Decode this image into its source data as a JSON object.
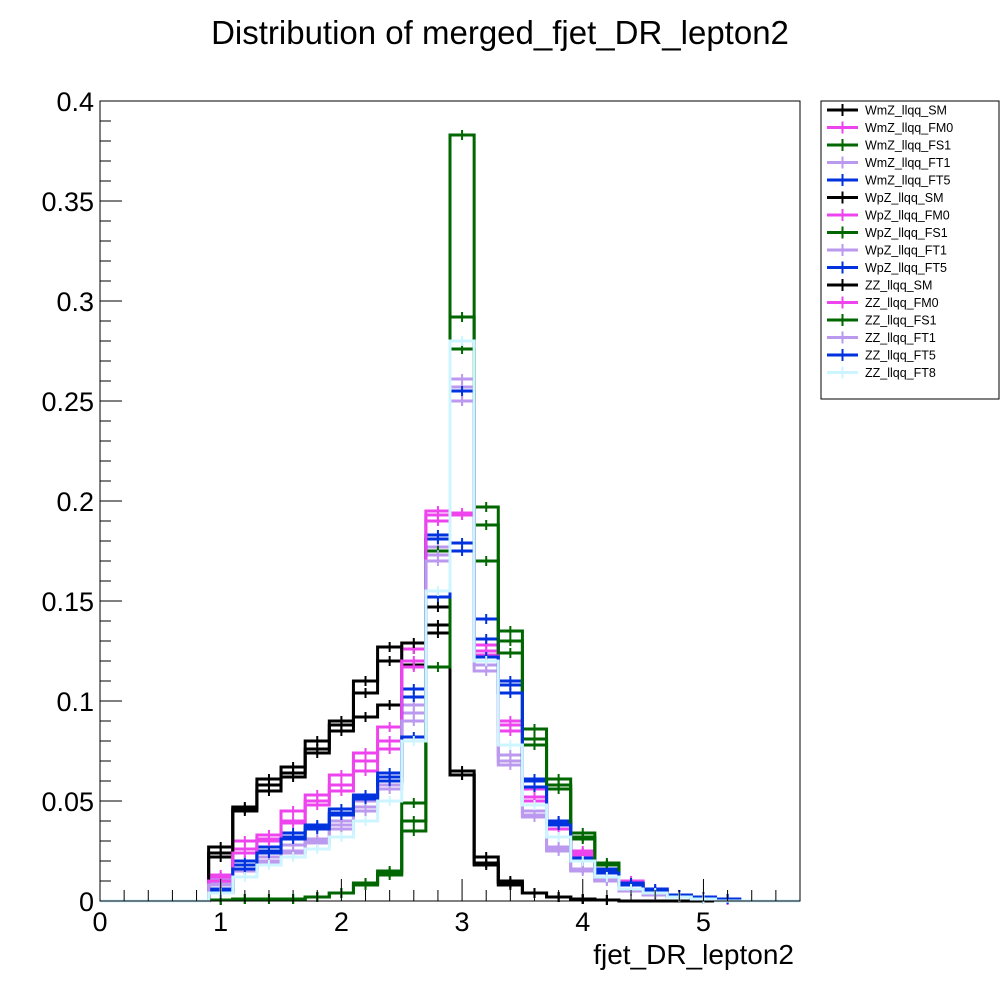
{
  "chart_data": {
    "type": "line",
    "title": "Distribution of merged_fjet_DR_lepton2",
    "xlabel": "fjet_DR_lepton2",
    "ylabel": "",
    "xlim": [
      0,
      5.8
    ],
    "ylim": [
      0,
      0.4
    ],
    "x_ticks": [
      "0",
      "1",
      "2",
      "3",
      "4",
      "5"
    ],
    "y_ticks": [
      "0",
      "0.05",
      "0.1",
      "0.15",
      "0.2",
      "0.25",
      "0.3",
      "0.35",
      "0.4"
    ],
    "bin_edges": [
      0.9,
      1.1,
      1.3,
      1.5,
      1.7,
      1.9,
      2.1,
      2.3,
      2.5,
      2.7,
      2.9,
      3.1,
      3.3,
      3.5,
      3.7,
      3.9,
      4.1,
      4.3,
      4.5,
      4.7,
      4.9,
      5.1,
      5.3,
      5.5
    ],
    "legend_position": "top-right",
    "grid": false,
    "series": [
      {
        "name": "WmZ_llqq_SM",
        "color": "#000000",
        "values": [
          0.027,
          0.047,
          0.055,
          0.062,
          0.074,
          0.085,
          0.092,
          0.098,
          0.118,
          0.138,
          0.063,
          0.018,
          0.008,
          0.004,
          0.002,
          0.001,
          0.0005,
          0,
          0,
          0,
          0,
          0,
          0
        ]
      },
      {
        "name": "WmZ_llqq_FM0",
        "color": "#ee44ee",
        "values": [
          0.013,
          0.03,
          0.033,
          0.039,
          0.048,
          0.055,
          0.065,
          0.076,
          0.117,
          0.195,
          0.193,
          0.128,
          0.09,
          0.056,
          0.04,
          0.025,
          0.016,
          0.01,
          0.006,
          0.003,
          0.001,
          0.0005,
          0
        ]
      },
      {
        "name": "WmZ_llqq_FS1",
        "color": "#006600",
        "values": [
          0.0005,
          0.001,
          0.001,
          0.001,
          0.002,
          0.004,
          0.009,
          0.015,
          0.049,
          0.181,
          0.383,
          0.197,
          0.135,
          0.086,
          0.061,
          0.034,
          0.019,
          0.009,
          0.004,
          0.002,
          0.001,
          0,
          0
        ]
      },
      {
        "name": "WmZ_llqq_FT1",
        "color": "#bb99ee",
        "values": [
          0.011,
          0.018,
          0.022,
          0.028,
          0.031,
          0.04,
          0.05,
          0.062,
          0.098,
          0.177,
          0.257,
          0.123,
          0.073,
          0.045,
          0.027,
          0.016,
          0.011,
          0.006,
          0.004,
          0.002,
          0.001,
          0,
          0
        ]
      },
      {
        "name": "WmZ_llqq_FT5",
        "color": "#0033dd",
        "values": [
          0.006,
          0.02,
          0.027,
          0.034,
          0.038,
          0.046,
          0.053,
          0.064,
          0.106,
          0.183,
          0.179,
          0.141,
          0.11,
          0.061,
          0.04,
          0.022,
          0.016,
          0.009,
          0.006,
          0.003,
          0.002,
          0.001,
          0
        ]
      },
      {
        "name": "WpZ_llqq_SM",
        "color": "#000000",
        "values": [
          0.022,
          0.045,
          0.061,
          0.067,
          0.08,
          0.09,
          0.11,
          0.127,
          0.126,
          0.134,
          0.063,
          0.022,
          0.01,
          0.004,
          0.002,
          0.001,
          0.0005,
          0,
          0,
          0,
          0,
          0,
          0
        ]
      },
      {
        "name": "WpZ_llqq_FM0",
        "color": "#ee44ee",
        "values": [
          0.012,
          0.026,
          0.031,
          0.045,
          0.053,
          0.063,
          0.074,
          0.087,
          0.126,
          0.193,
          0.194,
          0.123,
          0.088,
          0.052,
          0.038,
          0.024,
          0.015,
          0.008,
          0.005,
          0.003,
          0.001,
          0,
          0
        ]
      },
      {
        "name": "WpZ_llqq_FS1",
        "color": "#006600",
        "values": [
          0.0005,
          0.001,
          0.001,
          0.001,
          0.002,
          0.004,
          0.009,
          0.014,
          0.04,
          0.175,
          0.292,
          0.188,
          0.13,
          0.081,
          0.058,
          0.032,
          0.018,
          0.008,
          0.004,
          0.002,
          0.001,
          0,
          0
        ]
      },
      {
        "name": "WpZ_llqq_FT1",
        "color": "#bb99ee",
        "values": [
          0.009,
          0.016,
          0.02,
          0.025,
          0.03,
          0.038,
          0.047,
          0.058,
          0.094,
          0.173,
          0.261,
          0.118,
          0.07,
          0.043,
          0.026,
          0.016,
          0.01,
          0.006,
          0.003,
          0.002,
          0.001,
          0,
          0
        ]
      },
      {
        "name": "WpZ_llqq_FT5",
        "color": "#0033dd",
        "values": [
          0.005,
          0.018,
          0.025,
          0.032,
          0.037,
          0.044,
          0.052,
          0.062,
          0.102,
          0.181,
          0.175,
          0.131,
          0.108,
          0.06,
          0.039,
          0.021,
          0.015,
          0.009,
          0.005,
          0.003,
          0.001,
          0.001,
          0
        ]
      },
      {
        "name": "ZZ_llqq_SM",
        "color": "#000000",
        "values": [
          0.024,
          0.046,
          0.058,
          0.064,
          0.076,
          0.088,
          0.104,
          0.12,
          0.129,
          0.147,
          0.065,
          0.019,
          0.009,
          0.004,
          0.002,
          0.001,
          0.0005,
          0,
          0,
          0,
          0,
          0,
          0
        ]
      },
      {
        "name": "ZZ_llqq_FM0",
        "color": "#ee44ee",
        "values": [
          0.01,
          0.024,
          0.03,
          0.04,
          0.05,
          0.058,
          0.07,
          0.08,
          0.12,
          0.19,
          0.25,
          0.125,
          0.085,
          0.05,
          0.036,
          0.023,
          0.014,
          0.008,
          0.005,
          0.002,
          0.001,
          0,
          0
        ]
      },
      {
        "name": "ZZ_llqq_FS1",
        "color": "#006600",
        "values": [
          0.0005,
          0.001,
          0.001,
          0.001,
          0.002,
          0.004,
          0.008,
          0.013,
          0.035,
          0.117,
          0.276,
          0.17,
          0.124,
          0.078,
          0.056,
          0.031,
          0.018,
          0.008,
          0.004,
          0.002,
          0.001,
          0,
          0
        ]
      },
      {
        "name": "ZZ_llqq_FT1",
        "color": "#bb99ee",
        "values": [
          0.008,
          0.015,
          0.019,
          0.024,
          0.029,
          0.036,
          0.045,
          0.056,
          0.09,
          0.17,
          0.25,
          0.115,
          0.068,
          0.042,
          0.025,
          0.015,
          0.01,
          0.005,
          0.003,
          0.002,
          0.001,
          0,
          0
        ]
      },
      {
        "name": "ZZ_llqq_FT5",
        "color": "#0033dd",
        "values": [
          0.004,
          0.016,
          0.024,
          0.031,
          0.036,
          0.043,
          0.051,
          0.06,
          0.082,
          0.152,
          0.255,
          0.122,
          0.104,
          0.057,
          0.038,
          0.02,
          0.014,
          0.008,
          0.005,
          0.003,
          0.001,
          0.001,
          0
        ]
      },
      {
        "name": "ZZ_llqq_FT8",
        "color": "#ccf5ff",
        "values": [
          0.004,
          0.012,
          0.018,
          0.022,
          0.026,
          0.032,
          0.04,
          0.05,
          0.08,
          0.155,
          0.28,
          0.12,
          0.078,
          0.048,
          0.032,
          0.02,
          0.012,
          0.006,
          0.004,
          0.002,
          0.001,
          0,
          0
        ]
      }
    ]
  }
}
